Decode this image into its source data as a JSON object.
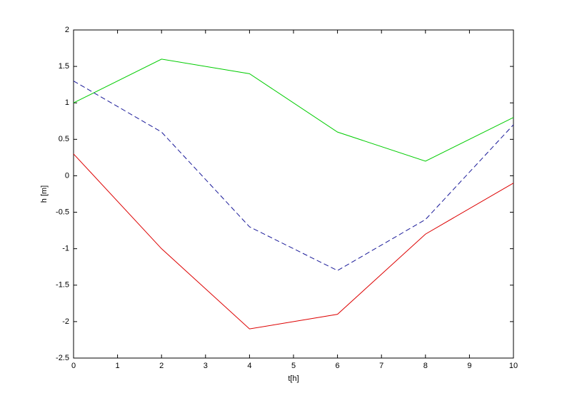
{
  "chart_data": {
    "type": "line",
    "x_label": "t[h]",
    "y_label": "h [m]",
    "x": [
      0,
      2,
      4,
      6,
      8,
      10
    ],
    "series": [
      {
        "color": "#00cc00",
        "dashed": false,
        "values": [
          1.0,
          1.6,
          1.4,
          0.6,
          0.2,
          0.8
        ]
      },
      {
        "color": "#1a1a99",
        "dashed": true,
        "values": [
          1.3,
          0.6,
          -0.7,
          -1.3,
          -0.6,
          0.7
        ]
      },
      {
        "color": "#dd0000",
        "dashed": false,
        "values": [
          0.3,
          -1.0,
          -2.1,
          -1.9,
          -0.8,
          -0.1
        ]
      }
    ],
    "xlim": [
      0,
      10
    ],
    "xticks": [
      0,
      1,
      2,
      3,
      4,
      5,
      6,
      7,
      8,
      9,
      10
    ],
    "ylim": [
      -2.5,
      2
    ],
    "yticks": [
      -2.5,
      -2,
      -1.5,
      -1,
      -0.5,
      0,
      0.5,
      1,
      1.5,
      2
    ],
    "grid": false
  }
}
